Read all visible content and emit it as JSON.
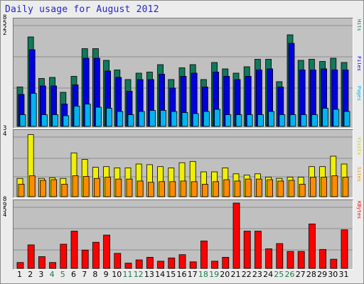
{
  "title": "Daily usage for August 2012",
  "colors": {
    "hits": "#11795b",
    "files": "#0000dd",
    "pages": "#00b4f0",
    "visits": "#f0f000",
    "sites": "#ff8c00",
    "kbytes": "#ff0000",
    "weekend": "#1a7a4a",
    "weekday": "#000000",
    "title": "#2424cc"
  },
  "legends": {
    "hits": "Hits",
    "files": "Files",
    "pages": "Pages",
    "visits": "Visits",
    "sites": "Sites",
    "kbytes": "KBytes"
  },
  "y_labels": {
    "top": [
      "8",
      "5",
      "2",
      "2"
    ],
    "mid": [
      "3",
      "4"
    ],
    "bottom": [
      "8",
      "9",
      "5",
      "4"
    ]
  },
  "chart_data": [
    {
      "type": "bar",
      "categories": [
        "1",
        "2",
        "3",
        "4",
        "5",
        "6",
        "7",
        "8",
        "9",
        "10",
        "11",
        "12",
        "13",
        "14",
        "15",
        "16",
        "17",
        "18",
        "19",
        "20",
        "21",
        "22",
        "23",
        "24",
        "25",
        "26",
        "27",
        "28",
        "29",
        "30",
        "31"
      ],
      "weekend_days": [
        "4",
        "5",
        "11",
        "12",
        "18",
        "19",
        "25",
        "26"
      ],
      "ylim": [
        0,
        100
      ],
      "grid": true,
      "series": [
        {
          "name": "Hits",
          "values": [
            37,
            84,
            45,
            46,
            32,
            47,
            73,
            73,
            62,
            53,
            44,
            50,
            51,
            58,
            44,
            55,
            58,
            44,
            60,
            54,
            50,
            56,
            63,
            63,
            42,
            86,
            62,
            63,
            61,
            64,
            60
          ]
        },
        {
          "name": "Files",
          "values": [
            30,
            72,
            38,
            38,
            21,
            39,
            64,
            64,
            52,
            46,
            33,
            44,
            44,
            49,
            36,
            47,
            50,
            37,
            51,
            47,
            44,
            47,
            53,
            54,
            37,
            78,
            53,
            53,
            54,
            53,
            53
          ]
        },
        {
          "name": "Pages",
          "values": [
            11,
            31,
            11,
            11,
            10,
            19,
            21,
            18,
            17,
            14,
            11,
            14,
            15,
            15,
            14,
            13,
            12,
            14,
            16,
            11,
            11,
            11,
            11,
            14,
            11,
            11,
            11,
            11,
            17,
            16,
            14
          ]
        }
      ]
    },
    {
      "type": "bar",
      "categories": [
        "1",
        "2",
        "3",
        "4",
        "5",
        "6",
        "7",
        "8",
        "9",
        "10",
        "11",
        "12",
        "13",
        "14",
        "15",
        "16",
        "17",
        "18",
        "19",
        "20",
        "21",
        "22",
        "23",
        "24",
        "25",
        "26",
        "27",
        "28",
        "29",
        "30",
        "31"
      ],
      "ylim": [
        0,
        100
      ],
      "grid": true,
      "series": [
        {
          "name": "Visits",
          "values": [
            28,
            95,
            28,
            29,
            28,
            67,
            57,
            45,
            46,
            44,
            44,
            50,
            49,
            46,
            44,
            52,
            54,
            38,
            38,
            44,
            35,
            33,
            35,
            30,
            28,
            30,
            30,
            46,
            46,
            62,
            50
          ]
        },
        {
          "name": "Sites",
          "values": [
            19,
            32,
            25,
            26,
            19,
            32,
            31,
            28,
            30,
            27,
            27,
            24,
            22,
            23,
            23,
            24,
            23,
            19,
            23,
            26,
            24,
            27,
            27,
            26,
            24,
            25,
            19,
            30,
            30,
            32,
            30
          ]
        }
      ]
    },
    {
      "type": "bar",
      "categories": [
        "1",
        "2",
        "3",
        "4",
        "5",
        "6",
        "7",
        "8",
        "9",
        "10",
        "11",
        "12",
        "13",
        "14",
        "15",
        "16",
        "17",
        "18",
        "19",
        "20",
        "21",
        "22",
        "23",
        "24",
        "25",
        "26",
        "27",
        "28",
        "29",
        "30",
        "31"
      ],
      "ylim": [
        0,
        100
      ],
      "grid": true,
      "series": [
        {
          "name": "KBytes",
          "values": [
            9,
            36,
            18,
            9,
            37,
            57,
            28,
            40,
            51,
            23,
            8,
            13,
            17,
            11,
            16,
            21,
            10,
            42,
            11,
            17,
            100,
            57,
            57,
            30,
            38,
            26,
            26,
            68,
            29,
            14,
            59
          ]
        }
      ]
    }
  ]
}
